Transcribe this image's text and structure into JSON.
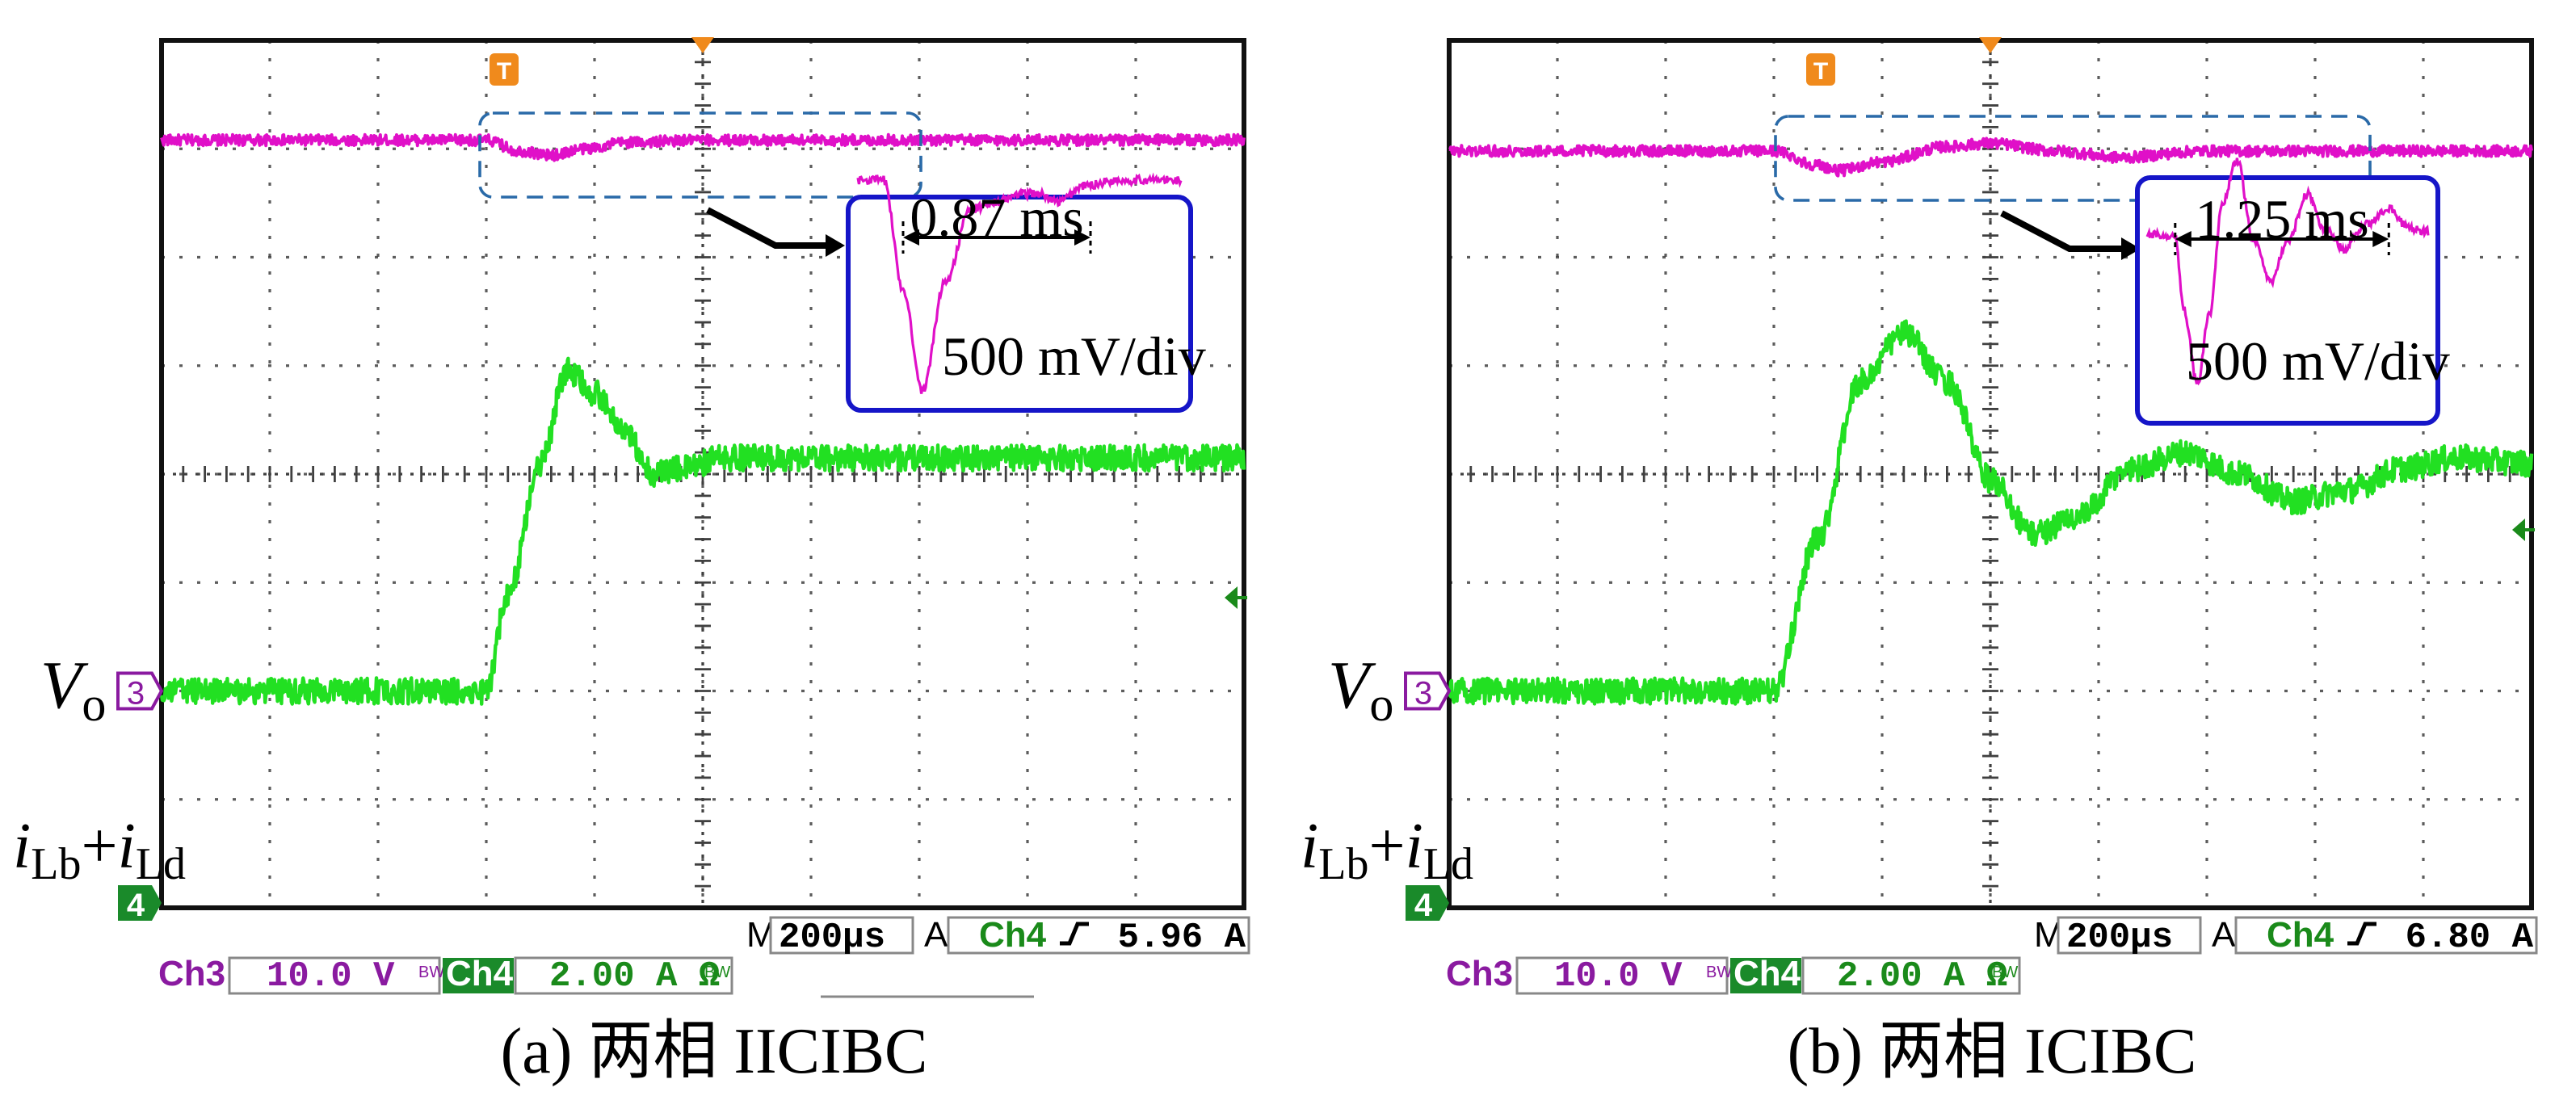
{
  "colors": {
    "ch3": "#e010c8",
    "ch4": "#22e022",
    "orange": "#f08a1c",
    "grid": "#404040",
    "inset_border": "#1515c8",
    "dash_box": "#2a6aa8",
    "label_purple": "#8a1aa0",
    "label_green": "#1a8a1a",
    "badge_green": "#1a8a2a"
  },
  "panels": [
    {
      "id": "a",
      "caption": "(a) 两相 IICIBC",
      "label_vo_main": "V",
      "label_vo_sub": "o",
      "label_i_1": "i",
      "label_i_1_sub": "Lb",
      "label_plus": "+",
      "label_i_2": "i",
      "label_i_2_sub": "Ld",
      "marker_ch3": "3",
      "marker_ch4": "4",
      "trigger_marker": "T",
      "inset_time": "0.87 ms",
      "inset_scale": "500 mV/div",
      "timebase_prefix": "M",
      "timebase": "200µs",
      "trigger_mode": "A",
      "trigger_source": "Ch4",
      "trigger_slope_icon": "rising-edge-icon",
      "trigger_level": "5.96 A",
      "ch3_label": "Ch3",
      "ch3_scale": "10.0 V",
      "ch3_bw": "BW",
      "ch4_label": "Ch4",
      "ch4_scale": "2.00 A Ω",
      "ch4_bw": "BW"
    },
    {
      "id": "b",
      "caption": "(b) 两相 ICIBC",
      "label_vo_main": "V",
      "label_vo_sub": "o",
      "label_i_1": "i",
      "label_i_1_sub": "Lb",
      "label_plus": "+",
      "label_i_2": "i",
      "label_i_2_sub": "Ld",
      "marker_ch3": "3",
      "marker_ch4": "4",
      "trigger_marker": "T",
      "inset_time": "1.25 ms",
      "inset_scale": "500 mV/div",
      "timebase_prefix": "M",
      "timebase": "200µs",
      "trigger_mode": "A",
      "trigger_source": "Ch4",
      "trigger_slope_icon": "rising-edge-icon",
      "trigger_level": "6.80 A",
      "ch3_label": "Ch3",
      "ch3_scale": "10.0 V",
      "ch3_bw": "BW",
      "ch4_label": "Ch4",
      "ch4_scale": "2.00 A Ω",
      "ch4_bw": "BW"
    }
  ],
  "chart_data": [
    {
      "type": "line",
      "panel": "a",
      "xlim": [
        0,
        10
      ],
      "ylim": [
        0,
        8
      ],
      "grid": true,
      "x_unit_per_div": "200µs",
      "series": [
        {
          "name": "Ch3",
          "points": [
            [
              0,
              7.08
            ],
            [
              3,
              7.08
            ],
            [
              3.3,
              6.98
            ],
            [
              3.6,
              6.94
            ],
            [
              3.9,
              7.0
            ],
            [
              4.3,
              7.06
            ],
            [
              5,
              7.08
            ],
            [
              10,
              7.08
            ]
          ]
        },
        {
          "name": "Ch4",
          "points": [
            [
              0,
              2.0
            ],
            [
              3.0,
              2.0
            ],
            [
              3.2,
              2.9
            ],
            [
              3.5,
              4.1
            ],
            [
              3.75,
              4.95
            ],
            [
              4.0,
              4.75
            ],
            [
              4.3,
              4.35
            ],
            [
              4.55,
              4.0
            ],
            [
              4.8,
              4.05
            ],
            [
              5.2,
              4.15
            ],
            [
              6,
              4.15
            ],
            [
              10,
              4.15
            ]
          ]
        }
      ],
      "inset": {
        "series": "Ch3",
        "label_time": "0.87 ms",
        "label_scale": "500 mV/div",
        "points": [
          [
            0,
            0.9
          ],
          [
            0.08,
            0.9
          ],
          [
            0.14,
            -0.6
          ],
          [
            0.2,
            -2.0
          ],
          [
            0.27,
            -0.5
          ],
          [
            0.35,
            0.5
          ],
          [
            0.43,
            0.6
          ],
          [
            0.5,
            0.7
          ],
          [
            0.55,
            0.72
          ],
          [
            0.62,
            0.6
          ],
          [
            0.7,
            0.82
          ],
          [
            0.8,
            0.9
          ],
          [
            1,
            0.9
          ]
        ]
      }
    },
    {
      "type": "line",
      "panel": "b",
      "xlim": [
        0,
        10
      ],
      "ylim": [
        0,
        8
      ],
      "grid": true,
      "x_unit_per_div": "200µs",
      "series": [
        {
          "name": "Ch3",
          "points": [
            [
              0,
              6.98
            ],
            [
              3.0,
              6.98
            ],
            [
              3.4,
              6.85
            ],
            [
              3.6,
              6.8
            ],
            [
              4.0,
              6.88
            ],
            [
              4.6,
              7.02
            ],
            [
              5.0,
              7.05
            ],
            [
              5.6,
              6.98
            ],
            [
              6.2,
              6.92
            ],
            [
              7.0,
              6.98
            ],
            [
              8,
              6.98
            ],
            [
              10,
              6.98
            ]
          ]
        },
        {
          "name": "Ch4",
          "points": [
            [
              0,
              2.0
            ],
            [
              3.0,
              2.0
            ],
            [
              3.4,
              3.4
            ],
            [
              3.8,
              4.85
            ],
            [
              4.2,
              5.3
            ],
            [
              4.6,
              4.85
            ],
            [
              5.0,
              3.95
            ],
            [
              5.4,
              3.45
            ],
            [
              5.8,
              3.6
            ],
            [
              6.3,
              4.05
            ],
            [
              6.8,
              4.2
            ],
            [
              7.3,
              4.0
            ],
            [
              7.8,
              3.75
            ],
            [
              8.3,
              3.85
            ],
            [
              8.8,
              4.05
            ],
            [
              9.3,
              4.15
            ],
            [
              10,
              4.1
            ]
          ]
        }
      ],
      "inset": {
        "series": "Ch3",
        "label_time": "1.25 ms",
        "label_scale": "500 mV/div",
        "points": [
          [
            0,
            0.3
          ],
          [
            0.1,
            0.3
          ],
          [
            0.13,
            -0.8
          ],
          [
            0.18,
            -1.9
          ],
          [
            0.22,
            -0.9
          ],
          [
            0.27,
            0.8
          ],
          [
            0.32,
            1.4
          ],
          [
            0.38,
            0.2
          ],
          [
            0.44,
            -0.4
          ],
          [
            0.5,
            0.2
          ],
          [
            0.57,
            0.9
          ],
          [
            0.63,
            0.4
          ],
          [
            0.7,
            0.1
          ],
          [
            0.78,
            0.45
          ],
          [
            0.86,
            0.7
          ],
          [
            0.93,
            0.4
          ],
          [
            1,
            0.35
          ]
        ]
      }
    }
  ]
}
